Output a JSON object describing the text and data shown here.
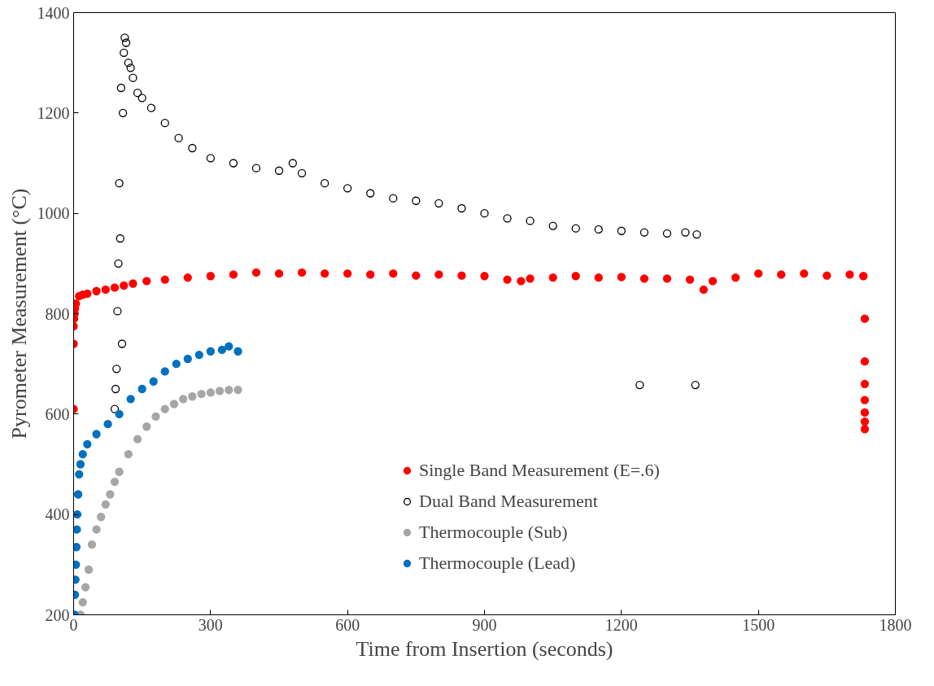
{
  "chart_data": {
    "type": "scatter",
    "xlabel": "Time from Insertion (seconds)",
    "ylabel": "Pyrometer Measurement (°C)",
    "xlim": [
      0,
      1800
    ],
    "xticks": [
      0,
      300,
      600,
      900,
      1200,
      1500,
      1800
    ],
    "ylim": [
      200,
      1400
    ],
    "yticks": [
      200,
      400,
      600,
      800,
      1000,
      1200,
      1400
    ],
    "grid": false,
    "legend": "bottom right",
    "marker": "circle",
    "series": [
      {
        "name": "Single Band Measurement (E=.6)",
        "color": "#ff0000",
        "x": [
          0,
          0,
          0,
          1,
          2,
          3,
          5,
          12,
          20,
          30,
          50,
          70,
          90,
          110,
          130,
          160,
          200,
          250,
          300,
          350,
          400,
          450,
          500,
          550,
          600,
          650,
          700,
          750,
          800,
          850,
          900,
          950,
          980,
          1000,
          1050,
          1100,
          1150,
          1200,
          1250,
          1300,
          1350,
          1380,
          1400,
          1450,
          1500,
          1550,
          1600,
          1650,
          1700,
          1730,
          1733,
          1733,
          1733,
          1733,
          1733,
          1733,
          1733
        ],
        "values": [
          610,
          740,
          775,
          790,
          800,
          810,
          820,
          835,
          838,
          840,
          845,
          848,
          852,
          856,
          860,
          865,
          868,
          872,
          875,
          878,
          882,
          880,
          882,
          880,
          880,
          878,
          880,
          876,
          878,
          876,
          875,
          868,
          865,
          870,
          872,
          875,
          872,
          873,
          870,
          870,
          868,
          848,
          865,
          872,
          880,
          878,
          880,
          876,
          878,
          875,
          790,
          705,
          660,
          628,
          603,
          585,
          570
        ]
      },
      {
        "name": "Dual Band Measurement",
        "color": "#000000",
        "marker": "circle_open",
        "x": [
          90,
          92,
          94,
          96,
          98,
          100,
          102,
          104,
          106,
          108,
          110,
          112,
          115,
          120,
          125,
          130,
          140,
          150,
          170,
          200,
          230,
          260,
          300,
          350,
          400,
          450,
          480,
          500,
          550,
          600,
          650,
          700,
          750,
          800,
          850,
          900,
          950,
          1000,
          1050,
          1100,
          1150,
          1200,
          1240,
          1250,
          1300,
          1340,
          1362,
          1365
        ],
        "values": [
          610,
          650,
          690,
          805,
          900,
          1060,
          950,
          1250,
          740,
          1200,
          1320,
          1350,
          1340,
          1300,
          1290,
          1270,
          1240,
          1230,
          1210,
          1180,
          1150,
          1130,
          1110,
          1100,
          1090,
          1085,
          1100,
          1080,
          1060,
          1050,
          1040,
          1030,
          1025,
          1020,
          1010,
          1000,
          990,
          985,
          975,
          970,
          968,
          965,
          658,
          962,
          960,
          962,
          658,
          958
        ]
      },
      {
        "name": "Thermocouple (Sub)",
        "color": "#a6a6a6",
        "x": [
          15,
          20,
          26,
          33,
          40,
          50,
          60,
          70,
          80,
          90,
          100,
          120,
          140,
          160,
          180,
          200,
          220,
          240,
          260,
          280,
          300,
          320,
          340,
          360
        ],
        "values": [
          200,
          225,
          255,
          290,
          340,
          370,
          395,
          420,
          440,
          465,
          485,
          520,
          550,
          575,
          595,
          610,
          620,
          630,
          635,
          640,
          643,
          646,
          648,
          648
        ]
      },
      {
        "name": "Thermocouple (Lead)",
        "color": "#0070c0",
        "x": [
          2,
          3,
          4,
          5,
          6,
          7,
          8,
          10,
          12,
          15,
          20,
          30,
          50,
          75,
          100,
          125,
          150,
          175,
          200,
          225,
          250,
          275,
          300,
          325,
          340,
          360
        ],
        "values": [
          200,
          240,
          270,
          300,
          335,
          370,
          400,
          440,
          480,
          500,
          520,
          540,
          560,
          580,
          600,
          630,
          650,
          665,
          685,
          700,
          710,
          718,
          725,
          728,
          735,
          725
        ]
      }
    ]
  }
}
